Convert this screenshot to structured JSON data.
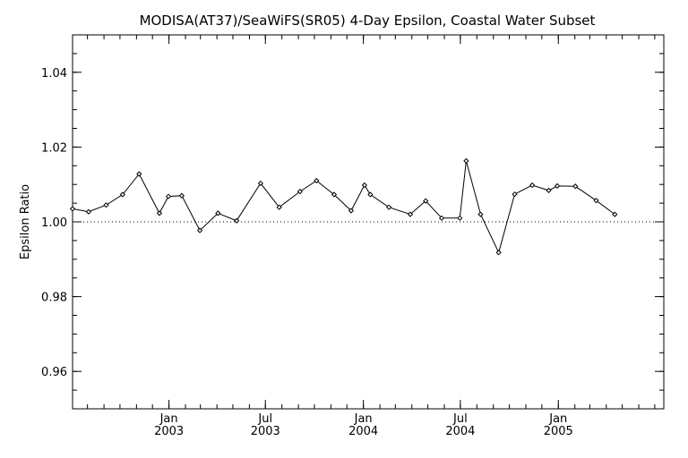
{
  "chart_data": {
    "type": "line",
    "title": "MODISA(AT37)/SeaWiFS(SR05) 4-Day Epsilon, Coastal Water Subset",
    "xlabel": "",
    "ylabel": "Epsilon Ratio",
    "ylim": [
      0.95,
      1.05
    ],
    "xlim": [
      "2002-07-04",
      "2005-07-18"
    ],
    "yticks": [
      {
        "value": 0.96,
        "label": "0.96"
      },
      {
        "value": 0.98,
        "label": "0.98"
      },
      {
        "value": 1.0,
        "label": "1.00"
      },
      {
        "value": 1.02,
        "label": "1.02"
      },
      {
        "value": 1.04,
        "label": "1.04"
      }
    ],
    "xticks": [
      {
        "date": "2003-01-01",
        "month": "Jan",
        "year": "2003"
      },
      {
        "date": "2003-07-01",
        "month": "Jul",
        "year": "2003"
      },
      {
        "date": "2004-01-01",
        "month": "Jan",
        "year": "2004"
      },
      {
        "date": "2004-07-01",
        "month": "Jul",
        "year": "2004"
      },
      {
        "date": "2005-01-01",
        "month": "Jan",
        "year": "2005"
      }
    ],
    "reference_line": {
      "y": 1.0,
      "style": "dotted"
    },
    "series": [
      {
        "points": [
          {
            "x": "2002-07-04",
            "y": 1.0035
          },
          {
            "x": "2002-08-03",
            "y": 1.0027
          },
          {
            "x": "2002-09-05",
            "y": 1.0045
          },
          {
            "x": "2002-10-06",
            "y": 1.0073
          },
          {
            "x": "2002-11-06",
            "y": 1.0128
          },
          {
            "x": "2002-12-14",
            "y": 1.0023
          },
          {
            "x": "2002-12-31",
            "y": 1.0068
          },
          {
            "x": "2003-01-25",
            "y": 1.007
          },
          {
            "x": "2003-02-28",
            "y": 0.9977
          },
          {
            "x": "2003-04-03",
            "y": 1.0023
          },
          {
            "x": "2003-05-08",
            "y": 1.0003
          },
          {
            "x": "2003-06-22",
            "y": 1.0103
          },
          {
            "x": "2003-07-27",
            "y": 1.0039
          },
          {
            "x": "2003-09-04",
            "y": 1.0081
          },
          {
            "x": "2003-10-05",
            "y": 1.011
          },
          {
            "x": "2003-11-07",
            "y": 1.0073
          },
          {
            "x": "2003-12-09",
            "y": 1.003
          },
          {
            "x": "2004-01-03",
            "y": 1.0098
          },
          {
            "x": "2004-01-14",
            "y": 1.0073
          },
          {
            "x": "2004-02-18",
            "y": 1.0039
          },
          {
            "x": "2004-03-29",
            "y": 1.002
          },
          {
            "x": "2004-04-27",
            "y": 1.0056
          },
          {
            "x": "2004-05-27",
            "y": 1.001
          },
          {
            "x": "2004-06-30",
            "y": 1.001
          },
          {
            "x": "2004-07-12",
            "y": 1.0163
          },
          {
            "x": "2004-08-08",
            "y": 1.002
          },
          {
            "x": "2004-09-11",
            "y": 0.9918
          },
          {
            "x": "2004-10-11",
            "y": 1.0074
          },
          {
            "x": "2004-11-13",
            "y": 1.0098
          },
          {
            "x": "2004-12-14",
            "y": 1.0084
          },
          {
            "x": "2004-12-30",
            "y": 1.0096
          },
          {
            "x": "2005-02-02",
            "y": 1.0095
          },
          {
            "x": "2005-03-13",
            "y": 1.0057
          },
          {
            "x": "2005-04-17",
            "y": 1.002
          }
        ]
      }
    ],
    "grid": false,
    "colors": {
      "line": "#000000",
      "marker": "#000000",
      "background": "#ffffff"
    }
  }
}
